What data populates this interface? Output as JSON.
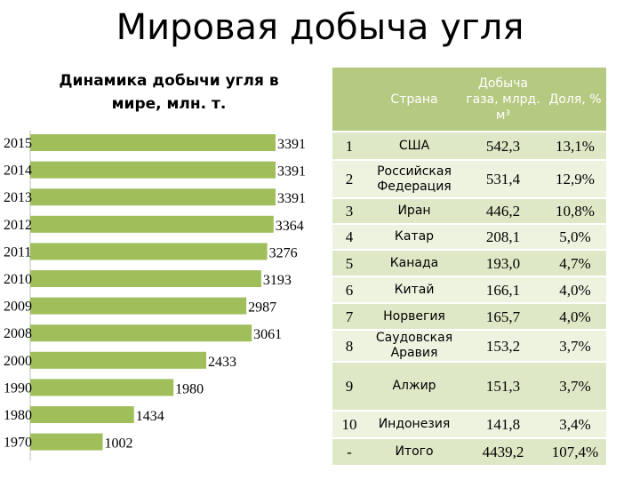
{
  "slide_title": "Мировая добыча угля",
  "chart_data": {
    "type": "bar",
    "orientation": "horizontal",
    "title": "Динамика добычи угля в\nмире, млн. т.",
    "categories": [
      "2015",
      "2014",
      "2013",
      "2012",
      "2011",
      "2010",
      "2009",
      "2008",
      "2000",
      "1990",
      "1980",
      "1970"
    ],
    "values": [
      3391,
      3391,
      3391,
      3364,
      3276,
      3193,
      2987,
      3061,
      2433,
      1980,
      1434,
      1002
    ],
    "data_labels": [
      "3391",
      "3391",
      "3391",
      "3364",
      "3276",
      "3193",
      "2987",
      "3061",
      "2433",
      "1980",
      "1434",
      "1002"
    ],
    "xlim": [
      0,
      3391
    ],
    "bar_color": "#a0be5a",
    "grid": false
  },
  "table": {
    "headers": [
      "",
      "Страна",
      "Добыча газа, млрд. м³",
      "Доля, %"
    ],
    "rows": [
      {
        "rank": "1",
        "country": "США",
        "value": "542,3",
        "share": "13,1%"
      },
      {
        "rank": "2",
        "country": "Российская Федерация",
        "value": "531,4",
        "share": "12,9%"
      },
      {
        "rank": "3",
        "country": "Иран",
        "value": "446,2",
        "share": "10,8%"
      },
      {
        "rank": "4",
        "country": "Катар",
        "value": "208,1",
        "share": "5,0%"
      },
      {
        "rank": "5",
        "country": "Канада",
        "value": "193,0",
        "share": "4,7%"
      },
      {
        "rank": "6",
        "country": "Китай",
        "value": "166,1",
        "share": "4,0%"
      },
      {
        "rank": "7",
        "country": "Норвегия",
        "value": "165,7",
        "share": "4,0%"
      },
      {
        "rank": "8",
        "country": "Саудовская Аравия",
        "value": "153,2",
        "share": "3,7%"
      },
      {
        "rank": "9",
        "country": "Алжир",
        "value": "151,3",
        "share": "3,7%"
      },
      {
        "rank": "10",
        "country": "Индонезия",
        "value": "141,8",
        "share": "3,4%"
      },
      {
        "rank": "-",
        "country": "Итого",
        "value": "4439,2",
        "share": "107,4%"
      }
    ],
    "header_color": "#b5c981",
    "row_color_a": "#eef3e0",
    "row_color_b": "#dfe8c6"
  }
}
